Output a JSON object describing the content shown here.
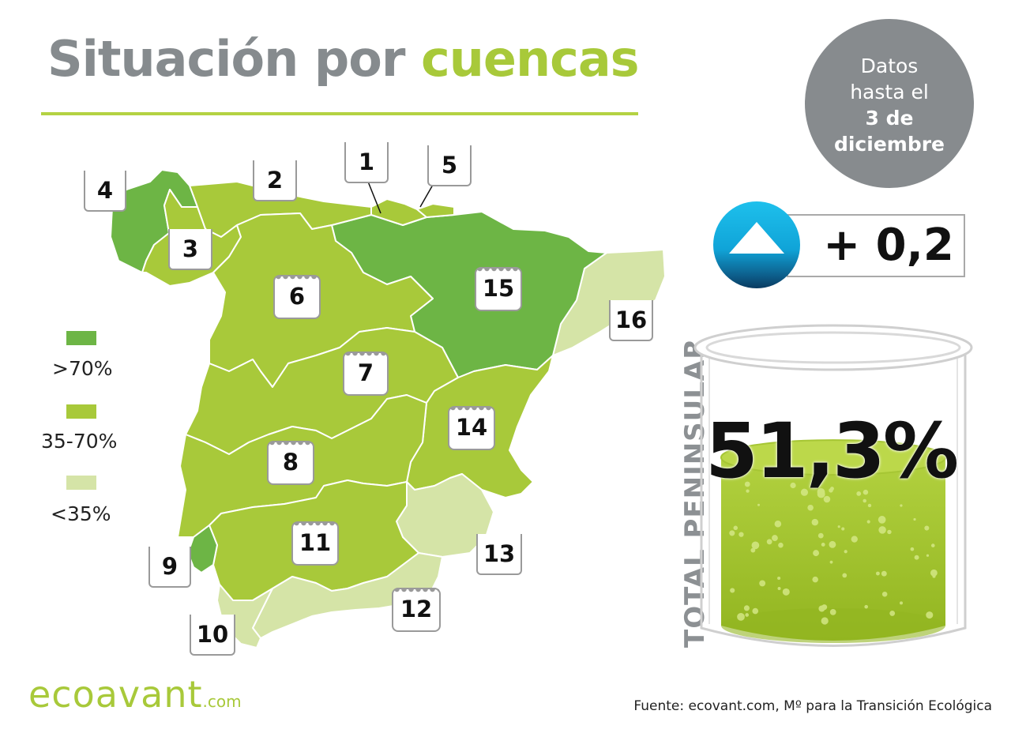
{
  "title": {
    "part1": "Situación por",
    "part2": "cuencas"
  },
  "date_note": {
    "line1": "Datos",
    "line2": "hasta el",
    "line3": "3 de",
    "line4": "diciembre"
  },
  "legend": [
    {
      "label": ">70%",
      "color": "#6db545"
    },
    {
      "label": "35-70%",
      "color": "#a8c93a"
    },
    {
      "label": "<35%",
      "color": "#d5e4a7"
    }
  ],
  "regions": [
    {
      "id": "1",
      "label": "1",
      "category": "35-70%"
    },
    {
      "id": "2",
      "label": "2",
      "category": "35-70%"
    },
    {
      "id": "3",
      "label": "3",
      "category": "35-70%"
    },
    {
      "id": "4",
      "label": "4",
      "category": ">70%"
    },
    {
      "id": "5",
      "label": "5",
      "category": "35-70%"
    },
    {
      "id": "6",
      "label": "6",
      "category": "35-70%"
    },
    {
      "id": "7",
      "label": "7",
      "category": "35-70%"
    },
    {
      "id": "8",
      "label": "8",
      "category": "35-70%"
    },
    {
      "id": "9",
      "label": "9",
      "category": ">70%"
    },
    {
      "id": "10",
      "label": "10",
      "category": "<35%"
    },
    {
      "id": "11",
      "label": "11",
      "category": "35-70%"
    },
    {
      "id": "12",
      "label": "12",
      "category": "<35%"
    },
    {
      "id": "13",
      "label": "13",
      "category": "<35%"
    },
    {
      "id": "14",
      "label": "14",
      "category": "35-70%"
    },
    {
      "id": "15",
      "label": "15",
      "category": ">70%"
    },
    {
      "id": "16",
      "label": "16",
      "category": "<35%"
    }
  ],
  "change": {
    "value": "+ 0,2",
    "icon": "up-triangle-icon",
    "color": "#1bb8e6"
  },
  "total": {
    "label": "TOTAL PENINSULAR",
    "value": "51,3%",
    "level_percent": 51.3
  },
  "brand": {
    "name": "ecoavant",
    "suffix": ".com"
  },
  "source": "Fuente: ecovant.com, Mº para la Transición Ecológica"
}
